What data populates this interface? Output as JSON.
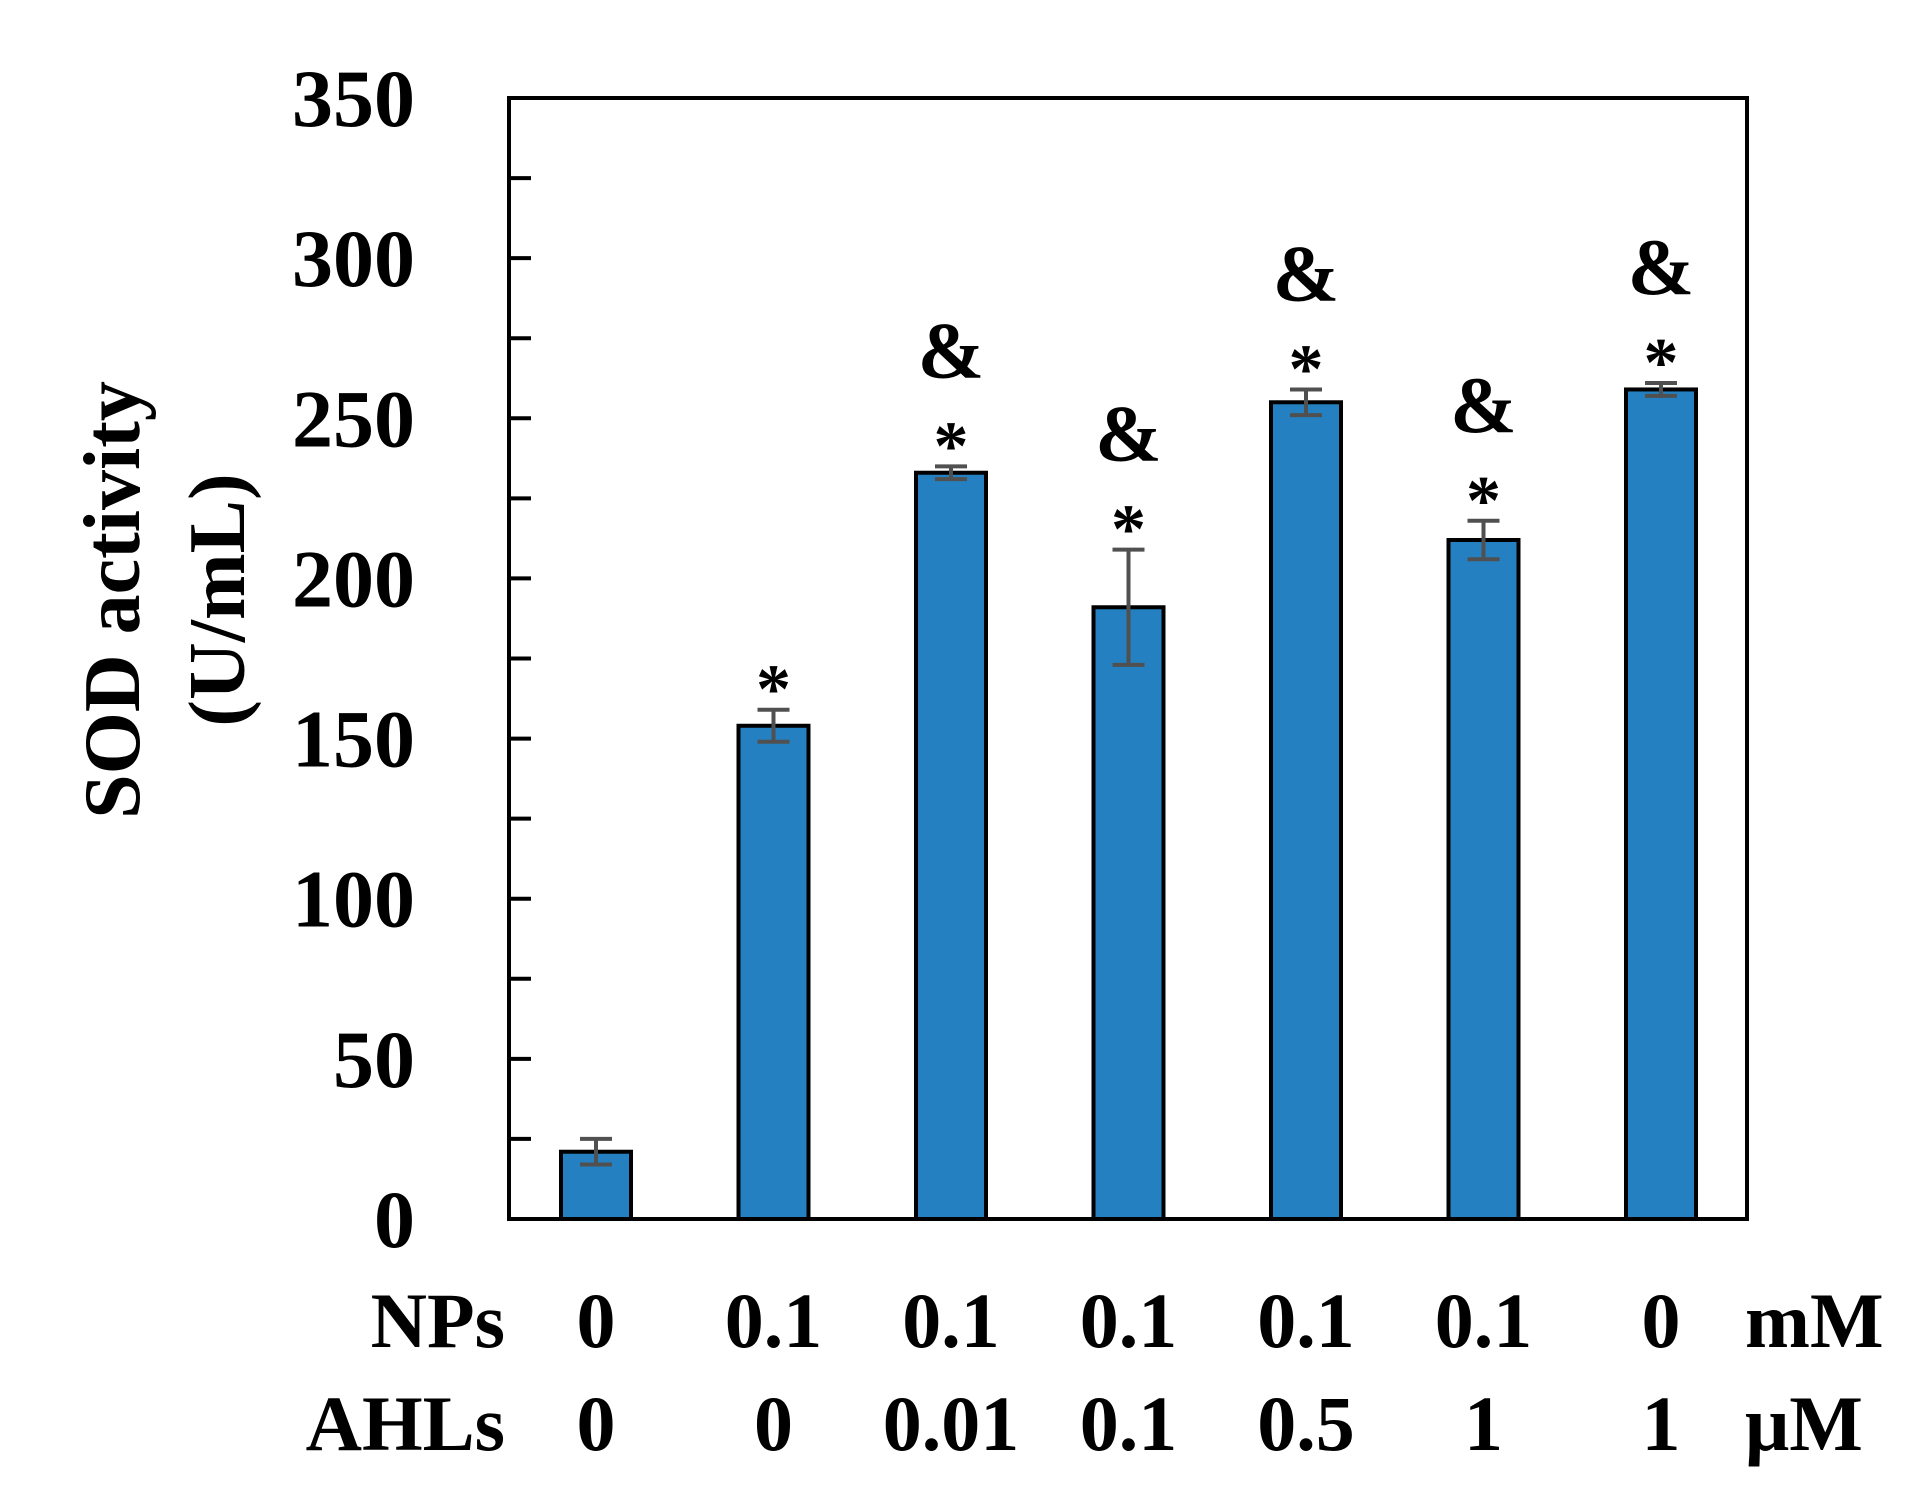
{
  "chart_data": {
    "type": "bar",
    "ylabel": [
      "SOD activity",
      "(U/mL)"
    ],
    "ylim": [
      0,
      350
    ],
    "ymajor_ticks": [
      0,
      50,
      100,
      150,
      200,
      250,
      300,
      350
    ],
    "yminor_ticks": [
      25,
      75,
      125,
      175,
      225,
      275,
      325
    ],
    "bar_color": "#2480C0",
    "error_color": "#505050",
    "series": [
      {
        "values": [
          21,
          154,
          233,
          191,
          255,
          212,
          259
        ],
        "errors": [
          4,
          5,
          2,
          18,
          4,
          6,
          2
        ]
      }
    ],
    "significance": [
      [],
      [
        "*"
      ],
      [
        "*",
        "&"
      ],
      [
        "*",
        "&"
      ],
      [
        "*",
        "&"
      ],
      [
        "*",
        "&"
      ],
      [
        "*",
        "&"
      ]
    ],
    "rows": [
      {
        "label": "NPs",
        "values": [
          "0",
          "0.1",
          "0.1",
          "0.1",
          "0.1",
          "0.1",
          "0"
        ],
        "unit": "mM"
      },
      {
        "label": "AHLs",
        "values": [
          "0",
          "0",
          "0.01",
          "0.1",
          "0.5",
          "1",
          "1"
        ],
        "unit": "μM"
      }
    ]
  }
}
